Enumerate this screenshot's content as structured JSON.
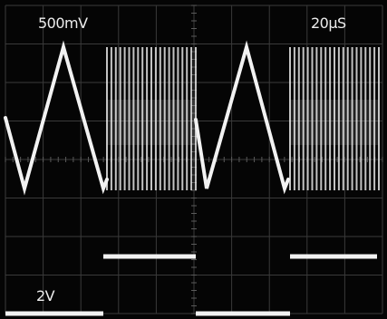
{
  "display": {
    "channel1_scale": "500mV",
    "timebase": "20µS",
    "channel2_scale": "2V",
    "trace_color": "#f2f2f2",
    "grid_color": "#3a3a3a",
    "background_color": "#050505"
  },
  "graticule": {
    "divisions_x": 10,
    "divisions_y": 8
  }
}
